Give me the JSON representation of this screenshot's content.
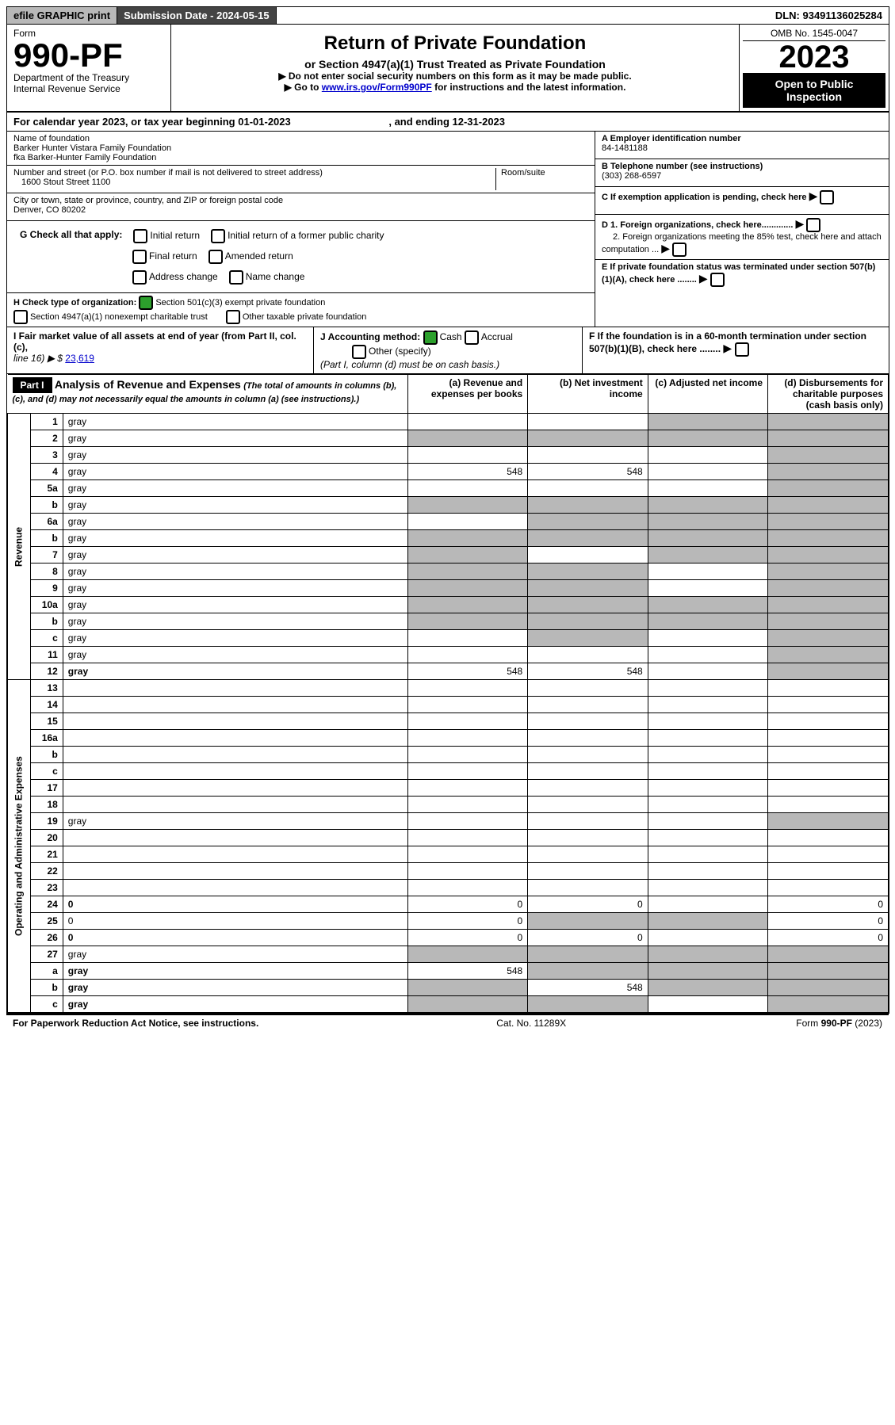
{
  "topbar": {
    "efile": "efile GRAPHIC print",
    "sublabel": "Submission Date - 2024-05-15",
    "dln": "DLN: 93491136025284"
  },
  "header": {
    "form": "Form",
    "formno": "990-PF",
    "dept": "Department of the Treasury",
    "irs": "Internal Revenue Service",
    "title": "Return of Private Foundation",
    "sub": "or Section 4947(a)(1) Trust Treated as Private Foundation",
    "inst1": "▶ Do not enter social security numbers on this form as it may be made public.",
    "inst2pre": "▶ Go to ",
    "inst2link": "www.irs.gov/Form990PF",
    "inst2post": " for instructions and the latest information.",
    "omb": "OMB No. 1545-0047",
    "year": "2023",
    "open": "Open to Public Inspection"
  },
  "calline": {
    "pre": "For calendar year 2023, or tax year beginning ",
    "begin": "01-01-2023",
    "mid": " , and ending ",
    "end": "12-31-2023"
  },
  "nameblock": {
    "namelbl": "Name of foundation",
    "name1": "Barker Hunter Vistara Family Foundation",
    "name2": "fka Barker-Hunter Family Foundation",
    "addrlbl": "Number and street (or P.O. box number if mail is not delivered to street address)",
    "addr": "1600 Stout Street 1100",
    "roomlbl": "Room/suite",
    "citylbl": "City or town, state or province, country, and ZIP or foreign postal code",
    "city": "Denver, CO  80202"
  },
  "right": {
    "a": "A Employer identification number",
    "ein": "84-1481188",
    "b": "B Telephone number (see instructions)",
    "phone": "(303) 268-6597",
    "c": "C If exemption application is pending, check here",
    "d1": "D 1. Foreign organizations, check here.............",
    "d2": "2. Foreign organizations meeting the 85% test, check here and attach computation ...",
    "e": "E  If private foundation status was terminated under section 507(b)(1)(A), check here ........",
    "f": "F  If the foundation is in a 60-month termination under section 507(b)(1)(B), check here ........"
  },
  "g": {
    "label": "G Check all that apply:",
    "o1": "Initial return",
    "o2": "Final return",
    "o3": "Address change",
    "o4": "Initial return of a former public charity",
    "o5": "Amended return",
    "o6": "Name change"
  },
  "h": {
    "label": "H Check type of organization:",
    "o1": "Section 501(c)(3) exempt private foundation",
    "o2": "Section 4947(a)(1) nonexempt charitable trust",
    "o3": "Other taxable private foundation"
  },
  "i": {
    "label": "I Fair market value of all assets at end of year (from Part II, col. (c),",
    "line": "line 16) ▶ $",
    "val": "23,619"
  },
  "j": {
    "label": "J Accounting method:",
    "o1": "Cash",
    "o2": "Accrual",
    "o3": "Other (specify)",
    "note": "(Part I, column (d) must be on cash basis.)"
  },
  "part1": {
    "title": "Part I",
    "heading": "Analysis of Revenue and Expenses",
    "note": "(The total of amounts in columns (b), (c), and (d) may not necessarily equal the amounts in column (a) (see instructions).)",
    "cola": "(a)  Revenue and expenses per books",
    "colb": "(b)  Net investment income",
    "colc": "(c)  Adjusted net income",
    "cold": "(d)  Disbursements for charitable purposes (cash basis only)",
    "sections": {
      "rev": "Revenue",
      "exp": "Operating and Administrative Expenses"
    },
    "rows": [
      {
        "n": "1",
        "d": "gray",
        "a": "",
        "b": "",
        "c": "gray"
      },
      {
        "n": "2",
        "d": "gray",
        "a": "gray",
        "b": "gray",
        "c": "gray"
      },
      {
        "n": "3",
        "d": "gray",
        "a": "",
        "b": "",
        "c": ""
      },
      {
        "n": "4",
        "d": "gray",
        "a": "548",
        "b": "548",
        "c": ""
      },
      {
        "n": "5a",
        "d": "gray",
        "a": "",
        "b": "",
        "c": ""
      },
      {
        "n": "b",
        "d": "gray",
        "a": "gray",
        "b": "gray",
        "c": "gray"
      },
      {
        "n": "6a",
        "d": "gray",
        "a": "",
        "b": "gray",
        "c": "gray"
      },
      {
        "n": "b",
        "d": "gray",
        "a": "gray",
        "b": "gray",
        "c": "gray"
      },
      {
        "n": "7",
        "d": "gray",
        "a": "gray",
        "b": "",
        "c": "gray"
      },
      {
        "n": "8",
        "d": "gray",
        "a": "gray",
        "b": "gray",
        "c": ""
      },
      {
        "n": "9",
        "d": "gray",
        "a": "gray",
        "b": "gray",
        "c": ""
      },
      {
        "n": "10a",
        "d": "gray",
        "a": "gray",
        "b": "gray",
        "c": "gray"
      },
      {
        "n": "b",
        "d": "gray",
        "a": "gray",
        "b": "gray",
        "c": "gray"
      },
      {
        "n": "c",
        "d": "gray",
        "a": "",
        "b": "gray",
        "c": ""
      },
      {
        "n": "11",
        "d": "gray",
        "a": "",
        "b": "",
        "c": ""
      },
      {
        "n": "12",
        "d": "gray",
        "bold": true,
        "a": "548",
        "b": "548",
        "c": ""
      },
      {
        "n": "13",
        "d": "",
        "a": "",
        "b": "",
        "c": ""
      },
      {
        "n": "14",
        "d": "",
        "a": "",
        "b": "",
        "c": ""
      },
      {
        "n": "15",
        "d": "",
        "a": "",
        "b": "",
        "c": ""
      },
      {
        "n": "16a",
        "d": "",
        "a": "",
        "b": "",
        "c": ""
      },
      {
        "n": "b",
        "d": "",
        "a": "",
        "b": "",
        "c": ""
      },
      {
        "n": "c",
        "d": "",
        "a": "",
        "b": "",
        "c": ""
      },
      {
        "n": "17",
        "d": "",
        "a": "",
        "b": "",
        "c": ""
      },
      {
        "n": "18",
        "d": "",
        "a": "",
        "b": "",
        "c": ""
      },
      {
        "n": "19",
        "d": "gray",
        "a": "",
        "b": "",
        "c": ""
      },
      {
        "n": "20",
        "d": "",
        "a": "",
        "b": "",
        "c": ""
      },
      {
        "n": "21",
        "d": "",
        "a": "",
        "b": "",
        "c": ""
      },
      {
        "n": "22",
        "d": "",
        "a": "",
        "b": "",
        "c": ""
      },
      {
        "n": "23",
        "d": "",
        "a": "",
        "b": "",
        "c": ""
      },
      {
        "n": "24",
        "d": "0",
        "bold": true,
        "a": "0",
        "b": "0",
        "c": ""
      },
      {
        "n": "25",
        "d": "0",
        "a": "0",
        "b": "gray",
        "c": "gray"
      },
      {
        "n": "26",
        "d": "0",
        "bold": true,
        "a": "0",
        "b": "0",
        "c": ""
      },
      {
        "n": "27",
        "d": "gray",
        "a": "gray",
        "b": "gray",
        "c": "gray"
      },
      {
        "n": "a",
        "d": "gray",
        "bold": true,
        "a": "548",
        "b": "gray",
        "c": "gray"
      },
      {
        "n": "b",
        "d": "gray",
        "bold": true,
        "a": "gray",
        "b": "548",
        "c": "gray"
      },
      {
        "n": "c",
        "d": "gray",
        "bold": true,
        "a": "gray",
        "b": "gray",
        "c": ""
      }
    ]
  },
  "footer": {
    "l": "For Paperwork Reduction Act Notice, see instructions.",
    "c": "Cat. No. 11289X",
    "r": "Form 990-PF (2023)"
  }
}
